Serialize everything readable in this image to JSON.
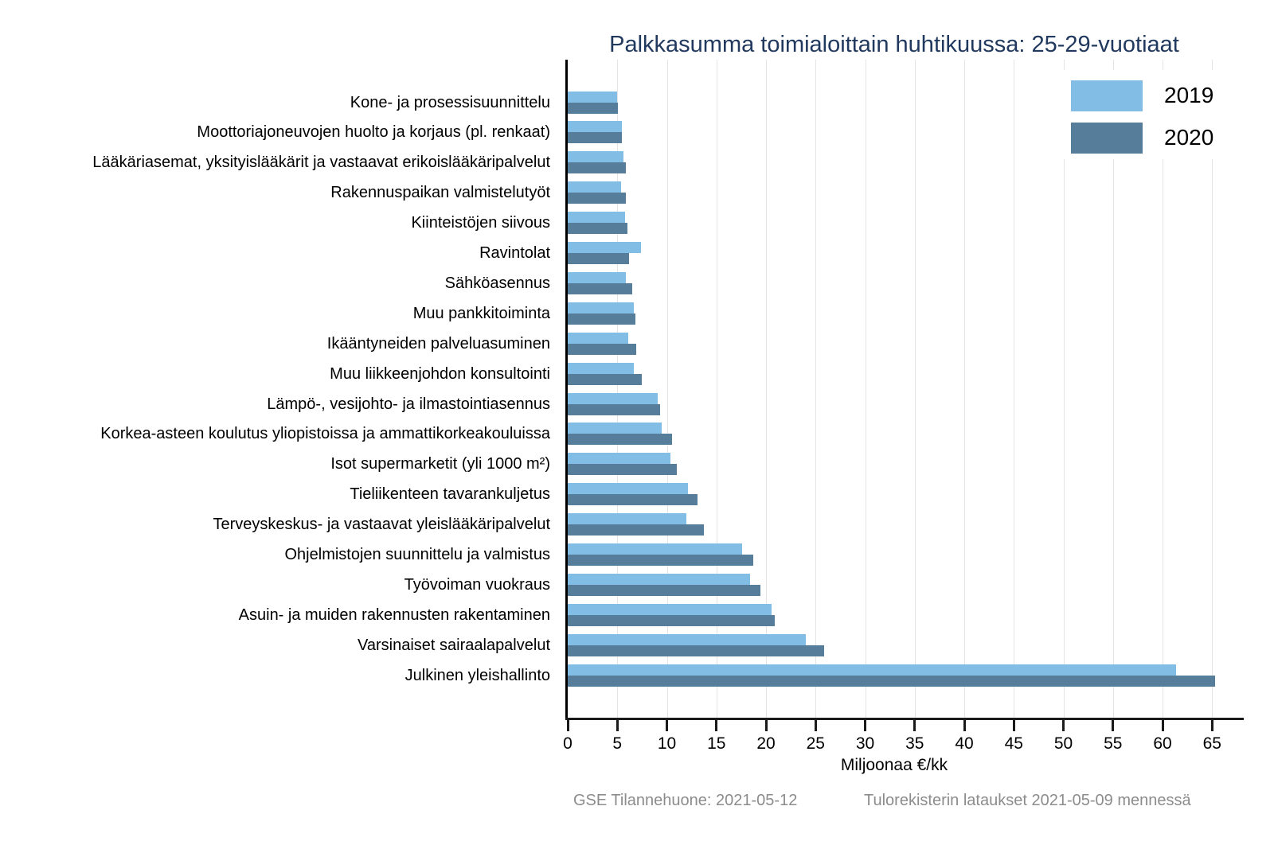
{
  "chart_data": {
    "type": "bar",
    "orientation": "horizontal",
    "title": "Palkkasumma toimialoittain huhtikuussa: 25-29-vuotiaat",
    "xlabel": "Miljoonaa €/kk",
    "xlim": [
      0,
      68
    ],
    "xticks": [
      0,
      5,
      10,
      15,
      20,
      25,
      30,
      35,
      40,
      45,
      50,
      55,
      60,
      65
    ],
    "grid": true,
    "legend_position": "top-right",
    "categories": [
      "Kone- ja prosessisuunnittelu",
      "Moottoriajoneuvojen huolto ja korjaus (pl. renkaat)",
      "Lääkäriasemat, yksityislääkärit ja vastaavat erikoislääkäripalvelut",
      "Rakennuspaikan valmistelutyöt",
      "Kiinteistöjen siivous",
      "Ravintolat",
      "Sähköasennus",
      "Muu pankkitoiminta",
      "Ikääntyneiden palveluasuminen",
      "Muu liikkeenjohdon konsultointi",
      "Lämpö-, vesijohto- ja ilmastointiasennus",
      "Korkea-asteen koulutus yliopistoissa ja ammattikorkeakouluissa",
      "Isot supermarketit (yli 1000 m²)",
      "Tieliikenteen tavarankuljetus",
      "Terveyskeskus- ja vastaavat yleislääkäripalvelut",
      "Ohjelmistojen suunnittelu ja valmistus",
      "Työvoiman vuokraus",
      "Asuin- ja muiden rakennusten rakentaminen",
      "Varsinaiset sairaalapalvelut",
      "Julkinen yleishallinto"
    ],
    "series": [
      {
        "name": "2019",
        "color": "#82BDE6",
        "values": [
          5.0,
          5.5,
          5.6,
          5.4,
          5.8,
          7.4,
          5.9,
          6.7,
          6.1,
          6.7,
          9.1,
          9.5,
          10.4,
          12.1,
          12.0,
          17.6,
          18.4,
          20.6,
          24.0,
          61.4
        ]
      },
      {
        "name": "2020",
        "color": "#567E9A",
        "values": [
          5.1,
          5.5,
          5.9,
          5.9,
          6.0,
          6.2,
          6.5,
          6.8,
          6.9,
          7.5,
          9.3,
          10.5,
          11.0,
          13.1,
          13.7,
          18.7,
          19.4,
          20.9,
          25.9,
          65.3
        ]
      }
    ]
  },
  "footer": {
    "left": "GSE Tilannehuone: 2021-05-12",
    "right": "Tulorekisterin lataukset 2021-05-09 mennessä"
  },
  "colors": {
    "title": "#21395E",
    "footer": "#8C8C8C",
    "grid": "#E4E4E4",
    "axis": "#1A1A1A"
  }
}
